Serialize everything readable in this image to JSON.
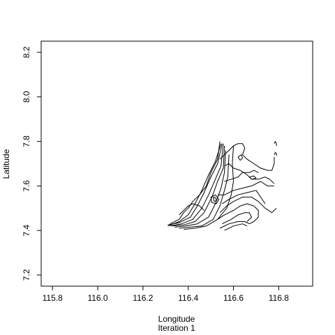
{
  "chart_data": {
    "type": "contour",
    "xlabel": "Longitude",
    "subtitle": "Iteration 1",
    "ylabel": "Latitude",
    "xlim": [
      115.75,
      116.95
    ],
    "ylim": [
      7.15,
      8.25
    ],
    "xticks": [
      115.8,
      116.0,
      116.2,
      116.4,
      116.6,
      116.8
    ],
    "xtick_labels": [
      "115.8",
      "116.0",
      "116.2",
      "116.4",
      "116.6",
      "116.8"
    ],
    "yticks": [
      7.2,
      7.4,
      7.6,
      7.8,
      8.0,
      8.2
    ],
    "ytick_labels": [
      "7.2",
      "7.4",
      "7.6",
      "7.8",
      "8.0",
      "8.2"
    ],
    "grid": false,
    "line_color": "#000000",
    "contours": [
      [
        [
          116.31,
          7.42
        ],
        [
          116.36,
          7.44
        ],
        [
          116.4,
          7.47
        ],
        [
          116.43,
          7.52
        ],
        [
          116.46,
          7.58
        ],
        [
          116.49,
          7.65
        ],
        [
          116.52,
          7.71
        ],
        [
          116.545,
          7.79
        ]
      ],
      [
        [
          116.31,
          7.425
        ],
        [
          116.36,
          7.435
        ],
        [
          116.41,
          7.46
        ],
        [
          116.44,
          7.51
        ],
        [
          116.47,
          7.57
        ],
        [
          116.5,
          7.64
        ],
        [
          116.53,
          7.7
        ],
        [
          116.55,
          7.79
        ]
      ],
      [
        [
          116.32,
          7.42
        ],
        [
          116.37,
          7.43
        ],
        [
          116.42,
          7.45
        ],
        [
          116.46,
          7.5
        ],
        [
          116.49,
          7.56
        ],
        [
          116.52,
          7.63
        ],
        [
          116.545,
          7.69
        ],
        [
          116.555,
          7.79
        ]
      ],
      [
        [
          116.33,
          7.42
        ],
        [
          116.38,
          7.425
        ],
        [
          116.43,
          7.44
        ],
        [
          116.47,
          7.48
        ],
        [
          116.505,
          7.55
        ],
        [
          116.53,
          7.62
        ],
        [
          116.555,
          7.68
        ],
        [
          116.56,
          7.78
        ]
      ],
      [
        [
          116.34,
          7.415
        ],
        [
          116.39,
          7.42
        ],
        [
          116.44,
          7.43
        ],
        [
          116.49,
          7.46
        ],
        [
          116.52,
          7.52
        ],
        [
          116.545,
          7.59
        ],
        [
          116.56,
          7.66
        ],
        [
          116.565,
          7.76
        ]
      ],
      [
        [
          116.36,
          7.41
        ],
        [
          116.41,
          7.415
        ],
        [
          116.46,
          7.42
        ],
        [
          116.51,
          7.45
        ],
        [
          116.54,
          7.51
        ],
        [
          116.56,
          7.58
        ],
        [
          116.575,
          7.64
        ],
        [
          116.58,
          7.74
        ]
      ],
      [
        [
          116.38,
          7.405
        ],
        [
          116.43,
          7.41
        ],
        [
          116.48,
          7.42
        ],
        [
          116.53,
          7.45
        ],
        [
          116.57,
          7.5
        ],
        [
          116.59,
          7.56
        ],
        [
          116.6,
          7.62
        ],
        [
          116.595,
          7.7
        ],
        [
          116.6,
          7.78
        ]
      ],
      [
        [
          116.32,
          7.43
        ],
        [
          116.36,
          7.45
        ],
        [
          116.38,
          7.48
        ],
        [
          116.4,
          7.5
        ],
        [
          116.42,
          7.53
        ],
        [
          116.45,
          7.56
        ],
        [
          116.48,
          7.6
        ],
        [
          116.5,
          7.66
        ],
        [
          116.53,
          7.72
        ],
        [
          116.54,
          7.8
        ]
      ],
      [
        [
          116.36,
          7.47
        ],
        [
          116.38,
          7.49
        ],
        [
          116.4,
          7.51
        ],
        [
          116.42,
          7.52
        ],
        [
          116.45,
          7.51
        ],
        [
          116.47,
          7.49
        ]
      ],
      [
        [
          116.5,
          7.55
        ],
        [
          116.52,
          7.56
        ],
        [
          116.535,
          7.54
        ],
        [
          116.525,
          7.52
        ],
        [
          116.505,
          7.525
        ],
        [
          116.5,
          7.55
        ]
      ],
      [
        [
          116.51,
          7.55
        ],
        [
          116.52,
          7.548
        ],
        [
          116.525,
          7.535
        ],
        [
          116.515,
          7.53
        ],
        [
          116.51,
          7.55
        ]
      ],
      [
        [
          116.53,
          7.56
        ],
        [
          116.56,
          7.56
        ],
        [
          116.6,
          7.58
        ],
        [
          116.64,
          7.59
        ],
        [
          116.68,
          7.6
        ],
        [
          116.72,
          7.62
        ],
        [
          116.75,
          7.6
        ],
        [
          116.78,
          7.6
        ]
      ],
      [
        [
          116.55,
          7.52
        ],
        [
          116.58,
          7.54
        ],
        [
          116.62,
          7.56
        ],
        [
          116.66,
          7.57
        ],
        [
          116.7,
          7.58
        ],
        [
          116.72,
          7.55
        ],
        [
          116.74,
          7.52
        ]
      ],
      [
        [
          116.54,
          7.48
        ],
        [
          116.57,
          7.51
        ],
        [
          116.6,
          7.53
        ],
        [
          116.64,
          7.55
        ],
        [
          116.68,
          7.55
        ],
        [
          116.71,
          7.53
        ],
        [
          116.74,
          7.5
        ],
        [
          116.77,
          7.48
        ],
        [
          116.79,
          7.5
        ]
      ],
      [
        [
          116.53,
          7.45
        ],
        [
          116.56,
          7.47
        ],
        [
          116.6,
          7.49
        ],
        [
          116.63,
          7.51
        ],
        [
          116.66,
          7.52
        ],
        [
          116.69,
          7.51
        ],
        [
          116.71,
          7.49
        ],
        [
          116.71,
          7.46
        ],
        [
          116.69,
          7.44
        ],
        [
          116.67,
          7.43
        ]
      ],
      [
        [
          116.55,
          7.43
        ],
        [
          116.59,
          7.45
        ],
        [
          116.62,
          7.47
        ],
        [
          116.65,
          7.48
        ],
        [
          116.67,
          7.48
        ],
        [
          116.68,
          7.46
        ],
        [
          116.66,
          7.44
        ]
      ],
      [
        [
          116.54,
          7.41
        ],
        [
          116.58,
          7.43
        ],
        [
          116.62,
          7.44
        ],
        [
          116.65,
          7.44
        ],
        [
          116.67,
          7.43
        ]
      ],
      [
        [
          116.56,
          7.4
        ],
        [
          116.6,
          7.42
        ],
        [
          116.64,
          7.43
        ],
        [
          116.66,
          7.42
        ]
      ],
      [
        [
          116.54,
          7.72
        ],
        [
          116.56,
          7.74
        ],
        [
          116.58,
          7.76
        ],
        [
          116.6,
          7.78
        ],
        [
          116.62,
          7.79
        ],
        [
          116.64,
          7.79
        ],
        [
          116.65,
          7.77
        ],
        [
          116.64,
          7.74
        ],
        [
          116.66,
          7.72
        ],
        [
          116.69,
          7.7
        ],
        [
          116.72,
          7.68
        ],
        [
          116.75,
          7.67
        ],
        [
          116.77,
          7.67
        ],
        [
          116.78,
          7.7
        ],
        [
          116.78,
          7.73
        ]
      ],
      [
        [
          116.56,
          7.69
        ],
        [
          116.58,
          7.7
        ],
        [
          116.6,
          7.68
        ],
        [
          116.63,
          7.67
        ],
        [
          116.66,
          7.65
        ],
        [
          116.68,
          7.63
        ],
        [
          116.71,
          7.63
        ],
        [
          116.74,
          7.64
        ],
        [
          116.76,
          7.63
        ],
        [
          116.78,
          7.61
        ]
      ],
      [
        [
          116.56,
          7.62
        ],
        [
          116.59,
          7.63
        ],
        [
          116.62,
          7.64
        ],
        [
          116.64,
          7.66
        ],
        [
          116.67,
          7.66
        ],
        [
          116.69,
          7.67
        ],
        [
          116.71,
          7.66
        ]
      ],
      [
        [
          116.62,
          7.73
        ],
        [
          116.635,
          7.74
        ],
        [
          116.64,
          7.725
        ],
        [
          116.63,
          7.715
        ],
        [
          116.62,
          7.73
        ]
      ],
      [
        [
          116.67,
          7.64
        ],
        [
          116.69,
          7.645
        ],
        [
          116.7,
          7.635
        ],
        [
          116.68,
          7.63
        ],
        [
          116.67,
          7.64
        ]
      ],
      [
        [
          116.78,
          7.74
        ],
        [
          116.785,
          7.75
        ],
        [
          116.79,
          7.745
        ],
        [
          116.79,
          7.735
        ]
      ],
      [
        [
          116.78,
          7.79
        ],
        [
          116.785,
          7.8
        ],
        [
          116.79,
          7.79
        ],
        [
          116.79,
          7.78
        ]
      ]
    ]
  }
}
